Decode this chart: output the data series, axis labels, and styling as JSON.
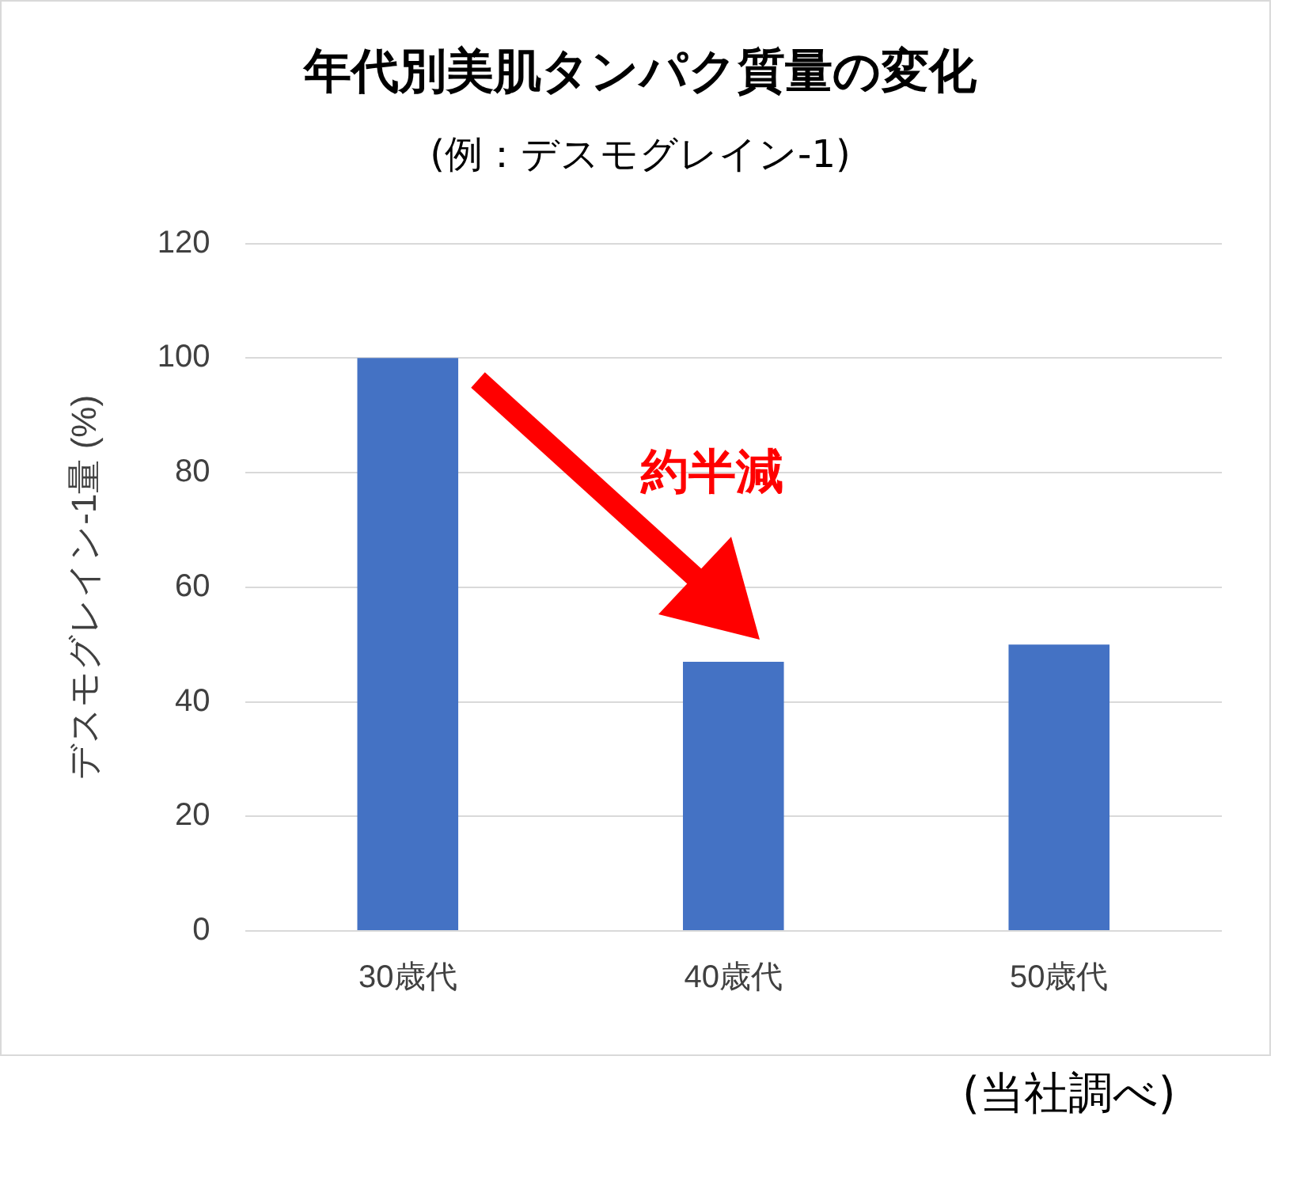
{
  "chart_data": {
    "type": "bar",
    "title": "年代別美肌タンパク質量の変化",
    "subtitle": "(例：デスモグレイン-1)",
    "ylabel": "デスモグレイン-1量 (%)",
    "categories": [
      "30歳代",
      "40歳代",
      "50歳代"
    ],
    "values": [
      100,
      47,
      50
    ],
    "color": "#4472c4",
    "ylim": [
      0,
      120
    ],
    "yticks": [
      0,
      20,
      40,
      60,
      80,
      100,
      120
    ],
    "grid": "y",
    "annotations": [
      "約半減",
      "(当社調べ)"
    ]
  }
}
